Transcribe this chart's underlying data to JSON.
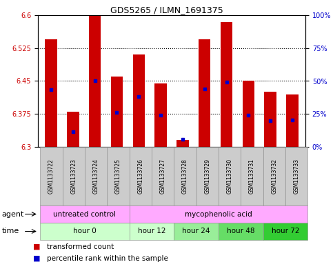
{
  "title": "GDS5265 / ILMN_1691375",
  "samples": [
    "GSM1133722",
    "GSM1133723",
    "GSM1133724",
    "GSM1133725",
    "GSM1133726",
    "GSM1133727",
    "GSM1133728",
    "GSM1133729",
    "GSM1133730",
    "GSM1133731",
    "GSM1133732",
    "GSM1133733"
  ],
  "bar_tops": [
    6.545,
    6.38,
    6.6,
    6.46,
    6.51,
    6.445,
    6.315,
    6.545,
    6.585,
    6.45,
    6.425,
    6.42
  ],
  "bar_bottoms": [
    6.3,
    6.3,
    6.3,
    6.3,
    6.3,
    6.3,
    6.3,
    6.3,
    6.3,
    6.3,
    6.3,
    6.3
  ],
  "blue_dot_values": [
    6.43,
    6.335,
    6.45,
    6.378,
    6.415,
    6.373,
    6.317,
    6.432,
    6.448,
    6.372,
    6.36,
    6.362
  ],
  "ylim_left": [
    6.3,
    6.6
  ],
  "yticks_left": [
    6.3,
    6.375,
    6.45,
    6.525,
    6.6
  ],
  "yticks_right": [
    0,
    25,
    50,
    75,
    100
  ],
  "ytick_labels_right": [
    "0%",
    "25%",
    "50%",
    "75%",
    "100%"
  ],
  "bar_color": "#cc0000",
  "dot_color": "#0000cc",
  "time_groups": [
    {
      "label": "hour 0",
      "start": 0,
      "end": 4,
      "color": "#ccffcc"
    },
    {
      "label": "hour 12",
      "start": 4,
      "end": 6,
      "color": "#ccffcc"
    },
    {
      "label": "hour 24",
      "start": 6,
      "end": 8,
      "color": "#99ee99"
    },
    {
      "label": "hour 48",
      "start": 8,
      "end": 10,
      "color": "#66dd66"
    },
    {
      "label": "hour 72",
      "start": 10,
      "end": 12,
      "color": "#33cc33"
    }
  ],
  "agent_groups": [
    {
      "label": "untreated control",
      "start": 0,
      "end": 4,
      "color": "#ffaaff"
    },
    {
      "label": "mycophenolic acid",
      "start": 4,
      "end": 12,
      "color": "#ffaaff"
    }
  ],
  "legend_red_label": "transformed count",
  "legend_blue_label": "percentile rank within the sample",
  "time_label": "time",
  "agent_label": "agent",
  "bar_width": 0.55
}
